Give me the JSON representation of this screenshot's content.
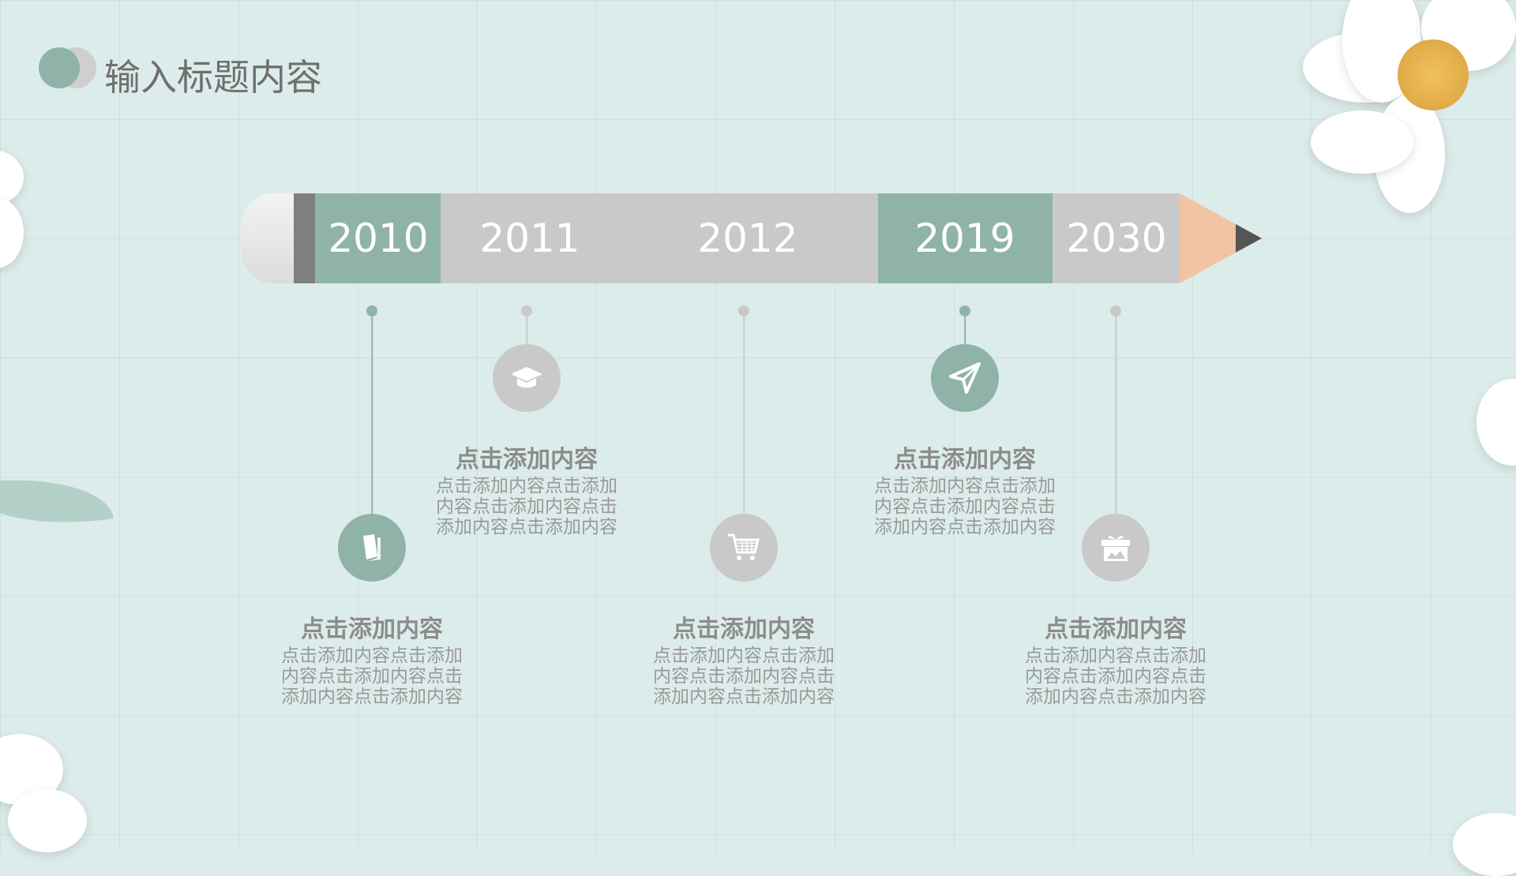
{
  "title": "输入标题内容",
  "colors": {
    "accent": "#8fb3a8",
    "neutral": "#c9c9c9",
    "background": "#dcecea",
    "pencil_tip": "#f1c4a3"
  },
  "timeline": {
    "years": [
      "2010",
      "2011",
      "2012",
      "2019",
      "2030"
    ],
    "items": [
      {
        "icon": "book-icon",
        "title": "点击添加内容",
        "lines": [
          "点击添加内容点击添加",
          "内容点击添加内容点击",
          "添加内容点击添加内容"
        ]
      },
      {
        "icon": "graduation-cap-icon",
        "title": "点击添加内容",
        "lines": [
          "点击添加内容点击添加",
          "内容点击添加内容点击",
          "添加内容点击添加内容"
        ]
      },
      {
        "icon": "shopping-cart-icon",
        "title": "点击添加内容",
        "lines": [
          "点击添加内容点击添加",
          "内容点击添加内容点击",
          "添加内容点击添加内容"
        ]
      },
      {
        "icon": "paper-plane-icon",
        "title": "点击添加内容",
        "lines": [
          "点击添加内容点击添加",
          "内容点击添加内容点击",
          "添加内容点击添加内容"
        ]
      },
      {
        "icon": "gift-icon",
        "title": "点击添加内容",
        "lines": [
          "点击添加内容点击添加",
          "内容点击添加内容点击",
          "添加内容点击添加内容"
        ]
      }
    ]
  }
}
